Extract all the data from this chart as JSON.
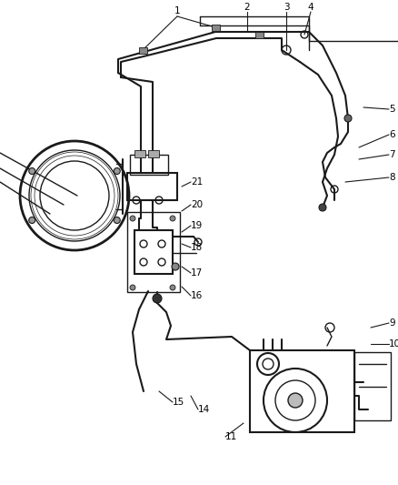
{
  "bg_color": "#ffffff",
  "line_color": "#1a1a1a",
  "label_color": "#000000",
  "fig_width": 4.38,
  "fig_height": 5.33,
  "dpi": 100,
  "label_fontsize": 7.5
}
